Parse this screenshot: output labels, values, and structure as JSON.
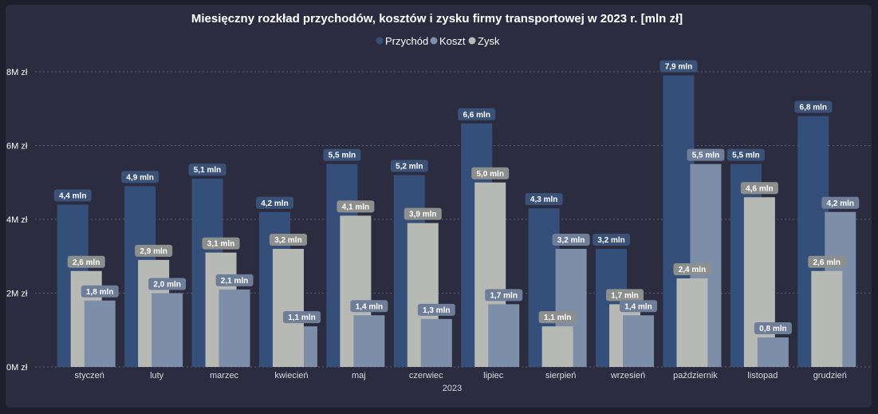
{
  "chart_data": {
    "type": "bar",
    "title": "Miesięczny rozkład przychodów, kosztów i zysku firmy transportowej w 2023 r. [mln zł]",
    "xlabel": "2023",
    "ylabel": "",
    "ylim": [
      0,
      8.7
    ],
    "yticks": [
      0,
      2,
      4,
      6,
      8
    ],
    "ytick_labels": [
      "0M zł",
      "2M zł",
      "4M zł",
      "6M zł",
      "8M zł"
    ],
    "grid": true,
    "legend_position": "top-center",
    "categories": [
      "styczeń",
      "luty",
      "marzec",
      "kwiecień",
      "maj",
      "czerwiec",
      "lipiec",
      "sierpień",
      "wrzesień",
      "październik",
      "listopad",
      "grudzień"
    ],
    "series": [
      {
        "name": "Przychód",
        "color": "#34507a",
        "label_bg": "#3a5277",
        "values": [
          4.4,
          4.9,
          5.1,
          4.2,
          5.5,
          5.2,
          6.6,
          4.3,
          3.2,
          7.9,
          5.5,
          6.8
        ],
        "labels": [
          "4,4 mln",
          "4,9 mln",
          "5,1 mln",
          "4,2 mln",
          "5,5 mln",
          "5,2 mln",
          "6,6 mln",
          "4,3 mln",
          "3,2 mln",
          "7,9 mln",
          "5,5 mln",
          "6,8 mln"
        ]
      },
      {
        "name": "Koszt",
        "color": "#7d8ea8",
        "label_bg": "#6f7e98",
        "values": [
          1.8,
          2.0,
          2.1,
          1.1,
          1.4,
          1.3,
          1.7,
          3.2,
          1.4,
          5.5,
          0.8,
          4.2
        ],
        "labels": [
          "1,8 mln",
          "2,0 mln",
          "2,1 mln",
          "1,1 mln",
          "1,4 mln",
          "1,3 mln",
          "1,7 mln",
          "3,2 mln",
          "1,4 mln",
          "5,5 mln",
          "0,8 mln",
          "4,2 mln"
        ]
      },
      {
        "name": "Zysk",
        "color": "#b7b9b4",
        "label_bg": "#8d8f8d",
        "values": [
          2.6,
          2.9,
          3.1,
          3.2,
          4.1,
          3.9,
          5.0,
          1.1,
          1.7,
          2.4,
          4.6,
          2.6
        ],
        "labels": [
          "2,6 mln",
          "2,9 mln",
          "3,1 mln",
          "3,2 mln",
          "4,1 mln",
          "3,9 mln",
          "5,0 mln",
          "1,1 mln",
          "1,7 mln",
          "2,4 mln",
          "4,6 mln",
          "2,6 mln"
        ]
      }
    ],
    "draw_order": [
      [
        "Przychód",
        "Zysk",
        "Koszt"
      ],
      [
        "Przychód",
        "Zysk",
        "Koszt"
      ],
      [
        "Przychód",
        "Zysk",
        "Koszt"
      ],
      [
        "Przychód",
        "Koszt",
        "Zysk"
      ],
      [
        "Przychód",
        "Zysk",
        "Koszt"
      ],
      [
        "Przychód",
        "Zysk",
        "Koszt"
      ],
      [
        "Przychód",
        "Zysk",
        "Koszt"
      ],
      [
        "Przychód",
        "Koszt",
        "Zysk"
      ],
      [
        "Przychód",
        "Zysk",
        "Koszt"
      ],
      [
        "Przychód",
        "Koszt",
        "Zysk"
      ],
      [
        "Przychód",
        "Zysk",
        "Koszt"
      ],
      [
        "Przychód",
        "Koszt",
        "Zysk"
      ]
    ]
  }
}
